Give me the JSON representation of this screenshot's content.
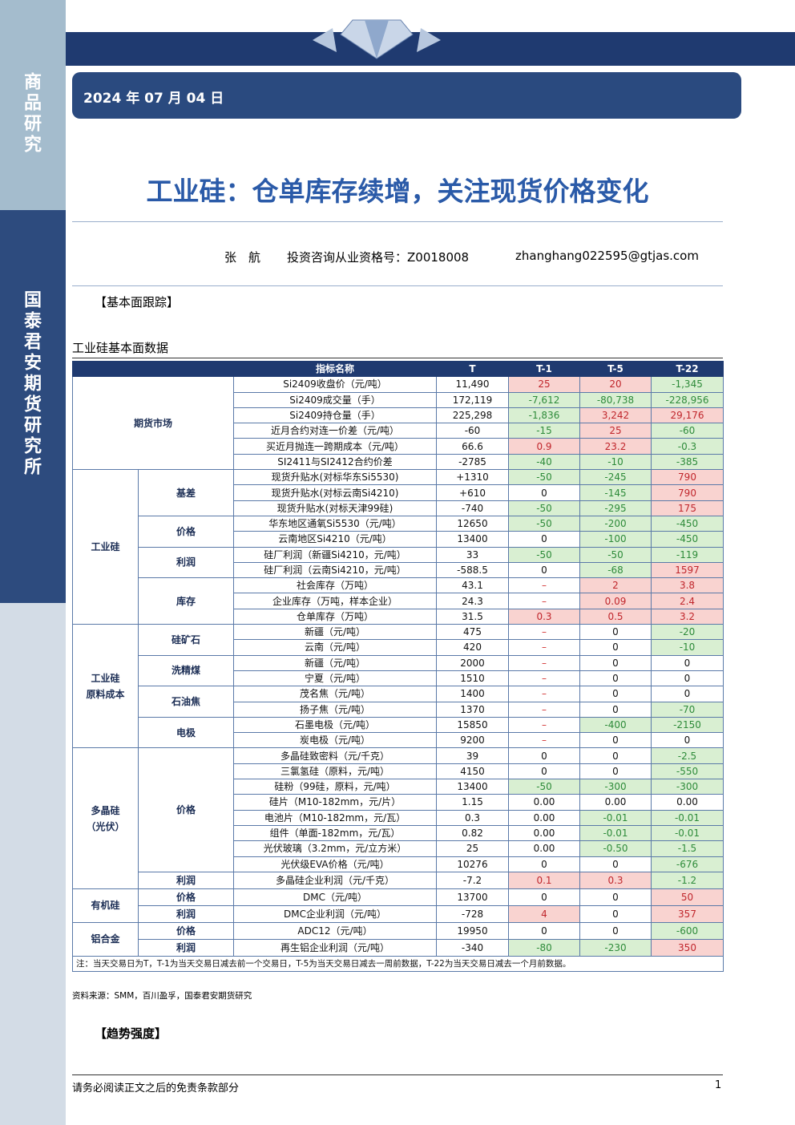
{
  "sidebar": {
    "section": "商品研究",
    "institute": "国泰君安期货研究所"
  },
  "header": {
    "date": "2024 年 07 月 04 日"
  },
  "report": {
    "title": "工业硅：仓单库存续增，关注现货价格变化",
    "author": "张　航",
    "qualification": "投资咨询从业资格号：Z0018008",
    "email": "zhanghang022595@gtjas.com",
    "section_fundamentals": "【基本面跟踪】",
    "table_title": "工业硅基本面数据",
    "source": "资料来源：SMM，百川盈孚，国泰君安期货研究",
    "section_trend": "【趋势强度】"
  },
  "table": {
    "header": [
      "指标名称",
      "T",
      "T-1",
      "T-5",
      "T-22"
    ],
    "groups": [
      {
        "label": "期货市场",
        "rows": [
          [
            "Si2409收盘价（元/吨）",
            "11,490",
            "25",
            "20",
            "-1,345"
          ],
          [
            "Si2409成交量（手）",
            "172,119",
            "-7,612",
            "-80,738",
            "-228,956"
          ],
          [
            "Si2409持仓量（手）",
            "225,298",
            "-1,836",
            "3,242",
            "29,176"
          ],
          [
            "近月合约对连一价差（元/吨）",
            "-60",
            "-15",
            "25",
            "-60"
          ],
          [
            "买近月抛连一跨期成本（元/吨）",
            "66.6",
            "0.9",
            "23.2",
            "-0.3"
          ],
          [
            "SI2411与SI2412合约价差",
            "-2785",
            "-40",
            "-10",
            "-385"
          ]
        ]
      },
      {
        "label": "工业硅",
        "subgroups": [
          {
            "label": "基差",
            "rows": [
              [
                "现货升贴水(对标华东Si5530)",
                "+1310",
                "-50",
                "-245",
                "790"
              ],
              [
                "现货升贴水(对标云南Si4210)",
                "+610",
                "0",
                "-145",
                "790"
              ],
              [
                "现货升贴水(对标天津99硅)",
                "-740",
                "-50",
                "-295",
                "175"
              ]
            ]
          },
          {
            "label": "价格",
            "rows": [
              [
                "华东地区通氧Si5530（元/吨）",
                "12650",
                "-50",
                "-200",
                "-450"
              ],
              [
                "云南地区Si4210（元/吨）",
                "13400",
                "0",
                "-100",
                "-450"
              ]
            ]
          },
          {
            "label": "利润",
            "rows": [
              [
                "硅厂利润（新疆Si4210，元/吨）",
                "33",
                "-50",
                "-50",
                "-119"
              ],
              [
                "硅厂利润（云南Si4210，元/吨）",
                "-588.5",
                "0",
                "-68",
                "1597"
              ]
            ]
          },
          {
            "label": "库存",
            "rows": [
              [
                "社会库存（万吨）",
                "43.1",
                "–",
                "2",
                "3.8"
              ],
              [
                "企业库存（万吨，样本企业）",
                "24.3",
                "–",
                "0.09",
                "2.4"
              ],
              [
                "仓单库存（万吨）",
                "31.5",
                "0.3",
                "0.5",
                "3.2"
              ]
            ]
          }
        ]
      },
      {
        "label": "工业硅\n原料成本",
        "subgroups": [
          {
            "label": "硅矿石",
            "rows": [
              [
                "新疆（元/吨）",
                "475",
                "–",
                "0",
                "-20"
              ],
              [
                "云南（元/吨）",
                "420",
                "–",
                "0",
                "-10"
              ]
            ]
          },
          {
            "label": "洗精煤",
            "rows": [
              [
                "新疆（元/吨）",
                "2000",
                "–",
                "0",
                "0"
              ],
              [
                "宁夏（元/吨）",
                "1510",
                "–",
                "0",
                "0"
              ]
            ]
          },
          {
            "label": "石油焦",
            "rows": [
              [
                "茂名焦（元/吨）",
                "1400",
                "–",
                "0",
                "0"
              ],
              [
                "扬子焦（元/吨）",
                "1370",
                "–",
                "0",
                "-70"
              ]
            ]
          },
          {
            "label": "电极",
            "rows": [
              [
                "石墨电极（元/吨）",
                "15850",
                "–",
                "-400",
                "-2150"
              ],
              [
                "炭电极（元/吨）",
                "9200",
                "–",
                "0",
                "0"
              ]
            ]
          }
        ]
      },
      {
        "label": "多晶硅\n（光伏）",
        "subgroups": [
          {
            "label": "价格",
            "rows": [
              [
                "多晶硅致密料（元/千克）",
                "39",
                "0",
                "0",
                "-2.5"
              ],
              [
                "三氯氢硅（原料，元/吨）",
                "4150",
                "0",
                "0",
                "-550"
              ],
              [
                "硅粉（99硅，原料，元/吨）",
                "13400",
                "-50",
                "-300",
                "-300"
              ],
              [
                "硅片（M10-182mm，元/片）",
                "1.15",
                "0.00",
                "0.00",
                "0.00"
              ],
              [
                "电池片（M10-182mm，元/瓦）",
                "0.3",
                "0.00",
                "-0.01",
                "-0.01"
              ],
              [
                "组件（单面-182mm，元/瓦）",
                "0.82",
                "0.00",
                "-0.01",
                "-0.01"
              ],
              [
                "光伏玻璃（3.2mm，元/立方米）",
                "25",
                "0.00",
                "-0.50",
                "-1.5"
              ],
              [
                "光伏级EVA价格（元/吨）",
                "10276",
                "0",
                "0",
                "-676"
              ]
            ]
          },
          {
            "label": "利润",
            "rows": [
              [
                "多晶硅企业利润（元/千克）",
                "-7.2",
                "0.1",
                "0.3",
                "-1.2"
              ]
            ]
          }
        ]
      },
      {
        "label": "有机硅",
        "subgroups": [
          {
            "label": "价格",
            "rows": [
              [
                "DMC（元/吨）",
                "13700",
                "0",
                "0",
                "50"
              ]
            ]
          },
          {
            "label": "利润",
            "rows": [
              [
                "DMC企业利润（元/吨）",
                "-728",
                "4",
                "0",
                "357"
              ]
            ]
          }
        ]
      },
      {
        "label": "铝合金",
        "subgroups": [
          {
            "label": "价格",
            "rows": [
              [
                "ADC12（元/吨）",
                "19950",
                "0",
                "0",
                "-600"
              ]
            ]
          },
          {
            "label": "利润",
            "rows": [
              [
                "再生铝企业利润（元/吨）",
                "-340",
                "-80",
                "-230",
                "350"
              ]
            ]
          }
        ]
      }
    ],
    "note": "注：当天交易日为T，T-1为当天交易日减去前一个交易日，T-5为当天交易日减去一周前数据，T-22为当天交易日减去一个月前数据。"
  },
  "footer": {
    "disclaimer": "请务必阅读正文之后的免责条款部分",
    "page": "1"
  }
}
